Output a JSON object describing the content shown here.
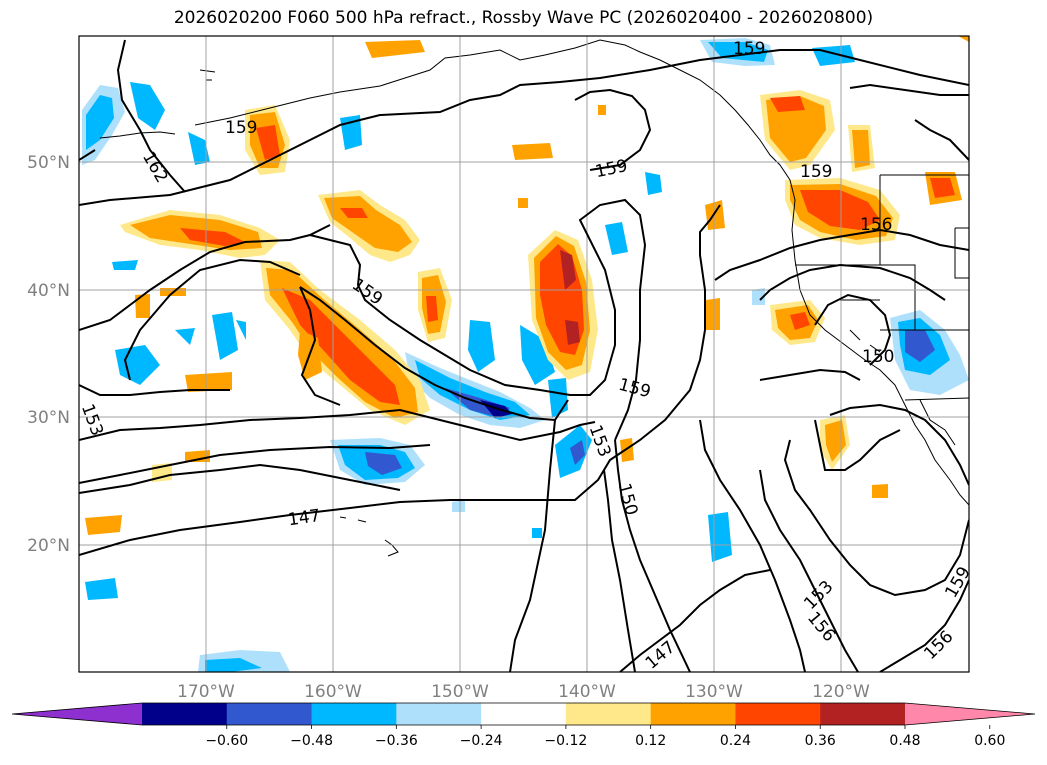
{
  "title": "2026020200 F060 500 hPa refract., Rossby Wave PC (2026020400 - 2026020800)",
  "axes": {
    "lat_ticks": [
      "50°N",
      "40°N",
      "30°N",
      "20°N"
    ],
    "lon_ticks": [
      "170°W",
      "160°W",
      "150°W",
      "140°W",
      "130°W",
      "120°W"
    ]
  },
  "contour_labels": [
    "159",
    "162",
    "159",
    "159",
    "159",
    "156",
    "159",
    "159",
    "153",
    "153",
    "150",
    "147",
    "147",
    "150",
    "153",
    "156",
    "156",
    "159"
  ],
  "colorbar": {
    "colors": [
      "#8e2fd0",
      "#00008b",
      "#3158cf",
      "#00b8ff",
      "#aee0fb",
      "#ffffff",
      "#ffe88a",
      "#ffa200",
      "#ff4500",
      "#b22222",
      "#ff87aa"
    ],
    "tick_labels": [
      "−0.60",
      "−0.48",
      "−0.36",
      "−0.24",
      "−0.12",
      "0.12",
      "0.24",
      "0.36",
      "0.48",
      "0.60"
    ]
  }
}
